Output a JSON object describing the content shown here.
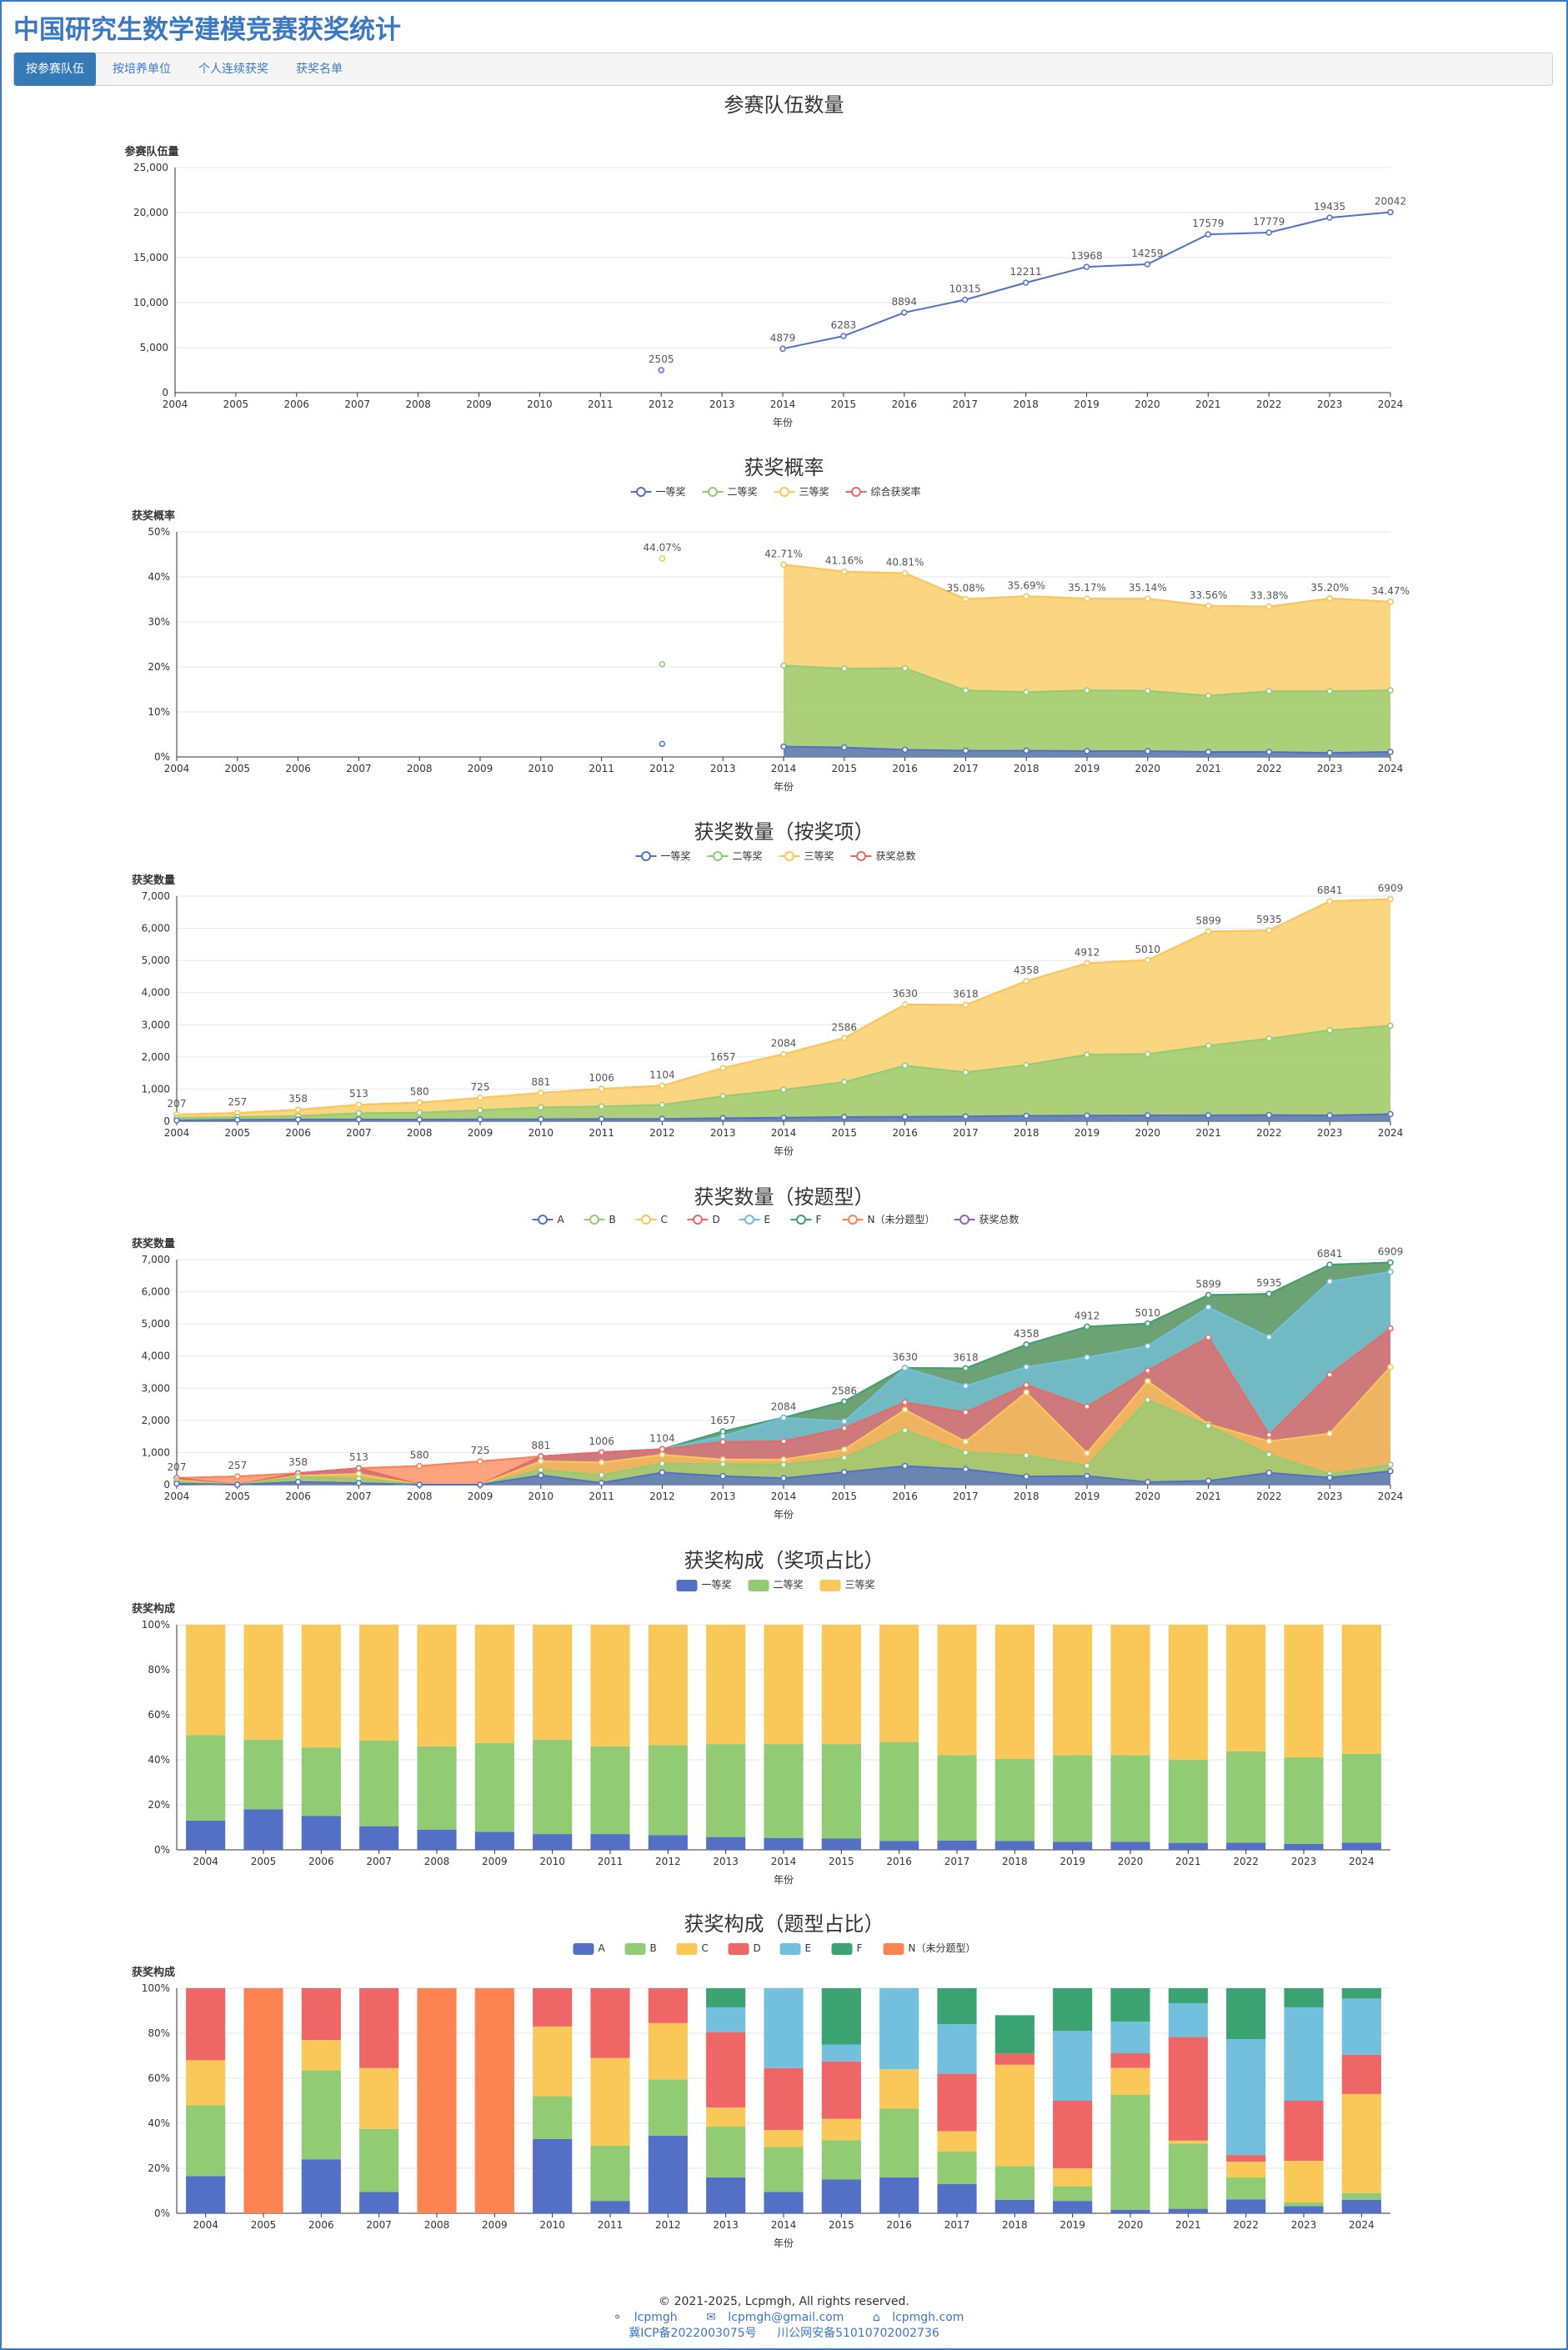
{
  "app": {
    "title": "中国研究生数学建模竞赛获奖统计"
  },
  "nav": {
    "tabs": [
      {
        "label": "按参赛队伍",
        "active": true
      },
      {
        "label": "按培养单位",
        "active": false
      },
      {
        "label": "个人连续获奖",
        "active": false
      },
      {
        "label": "获奖名单",
        "active": false
      }
    ]
  },
  "footer": {
    "copyright": "© 2021-2025, Lcpmgh, All rights reserved.",
    "github": "lcpmgh",
    "email": "lcpmgh@gmail.com",
    "site": "lcpmgh.com",
    "icp": "冀ICP备2022003075号",
    "police": "川公网安备51010702002736"
  },
  "chart_data": [
    {
      "id": "teams",
      "type": "line",
      "title": "参赛队伍数量",
      "ylabel": "参赛队伍量",
      "xlabel": "年份",
      "x": [
        "2004",
        "2005",
        "2006",
        "2007",
        "2008",
        "2009",
        "2010",
        "2011",
        "2012",
        "2013",
        "2014",
        "2015",
        "2016",
        "2017",
        "2018",
        "2019",
        "2020",
        "2021",
        "2022",
        "2023",
        "2024"
      ],
      "ylim": [
        0,
        25000
      ],
      "yticks": [
        "0",
        "5,000",
        "10,000",
        "15,000",
        "20,000",
        "25,000"
      ],
      "series": [
        {
          "name": "",
          "color": "#5470c6",
          "values": [
            null,
            null,
            null,
            null,
            null,
            null,
            null,
            null,
            2505,
            null,
            4879,
            6283,
            8894,
            10315,
            12211,
            13968,
            14259,
            17579,
            17779,
            19435,
            20042
          ]
        }
      ],
      "data_labels": [
        "",
        "",
        "",
        "",
        "",
        "",
        "",
        "",
        "2505",
        "",
        "4879",
        "6283",
        "8894",
        "10315",
        "12211",
        "13968",
        "14259",
        "17579",
        "17779",
        "19435",
        "20042"
      ]
    },
    {
      "id": "rate",
      "type": "area",
      "title": "获奖概率",
      "ylabel": "获奖概率",
      "xlabel": "年份",
      "x": [
        "2004",
        "2005",
        "2006",
        "2007",
        "2008",
        "2009",
        "2010",
        "2011",
        "2012",
        "2013",
        "2014",
        "2015",
        "2016",
        "2017",
        "2018",
        "2019",
        "2020",
        "2021",
        "2022",
        "2023",
        "2024"
      ],
      "ylim": [
        0,
        50
      ],
      "yticks": [
        "0%",
        "10%",
        "20%",
        "30%",
        "40%",
        "50%"
      ],
      "legend": [
        "一等奖",
        "二等奖",
        "三等奖",
        "综合获奖率"
      ],
      "series": [
        {
          "name": "一等奖",
          "color": "#5470c6",
          "values": [
            null,
            null,
            null,
            null,
            null,
            null,
            null,
            null,
            2.9,
            null,
            2.3,
            2.1,
            1.6,
            1.4,
            1.4,
            1.3,
            1.3,
            1.1,
            1.1,
            0.9,
            1.1
          ]
        },
        {
          "name": "二等奖",
          "color": "#91cc75",
          "values": [
            null,
            null,
            null,
            null,
            null,
            null,
            null,
            null,
            20.6,
            null,
            20.3,
            19.6,
            19.7,
            14.8,
            14.4,
            14.8,
            14.7,
            13.6,
            14.6,
            14.6,
            14.8
          ]
        },
        {
          "name": "三等奖",
          "color": "#fac858",
          "values": [
            null,
            null,
            null,
            null,
            null,
            null,
            null,
            null,
            44.07,
            null,
            42.71,
            41.16,
            40.81,
            35.08,
            35.69,
            35.17,
            35.14,
            33.56,
            33.38,
            35.2,
            34.47
          ]
        },
        {
          "name": "综合获奖率",
          "color": "#ee6666",
          "values": [
            null,
            null,
            null,
            null,
            null,
            null,
            null,
            null,
            44.07,
            null,
            42.71,
            41.16,
            40.81,
            35.08,
            35.69,
            35.17,
            35.14,
            33.56,
            33.38,
            35.2,
            34.47
          ]
        }
      ],
      "data_labels": [
        "",
        "",
        "",
        "",
        "",
        "",
        "",
        "",
        "44.07%",
        "",
        "42.71%",
        "41.16%",
        "40.81%",
        "35.08%",
        "35.69%",
        "35.17%",
        "35.14%",
        "33.56%",
        "33.38%",
        "35.20%",
        "34.47%"
      ]
    },
    {
      "id": "awards",
      "type": "area",
      "title": "获奖数量（按奖项）",
      "ylabel": "获奖数量",
      "xlabel": "年份",
      "x": [
        "2004",
        "2005",
        "2006",
        "2007",
        "2008",
        "2009",
        "2010",
        "2011",
        "2012",
        "2013",
        "2014",
        "2015",
        "2016",
        "2017",
        "2018",
        "2019",
        "2020",
        "2021",
        "2022",
        "2023",
        "2024"
      ],
      "ylim": [
        0,
        7000
      ],
      "yticks": [
        "0",
        "1,000",
        "2,000",
        "3,000",
        "4,000",
        "5,000",
        "6,000",
        "7,000"
      ],
      "legend": [
        "一等奖",
        "二等奖",
        "三等奖",
        "获奖总数"
      ],
      "series": [
        {
          "name": "一等奖",
          "color": "#5470c6",
          "values": [
            27,
            46,
            54,
            54,
            52,
            58,
            60,
            70,
            72,
            95,
            110,
            130,
            140,
            148,
            170,
            175,
            180,
            185,
            190,
            180,
            220
          ]
        },
        {
          "name": "二等奖",
          "color": "#91cc75",
          "values": [
            106,
            126,
            163,
            248,
            268,
            345,
            430,
            461,
            510,
            780,
            980,
            1220,
            1730,
            1520,
            1750,
            2070,
            2090,
            2350,
            2570,
            2830,
            2970
          ]
        },
        {
          "name": "三等奖",
          "color": "#fac858",
          "values": [
            207,
            257,
            358,
            513,
            580,
            725,
            881,
            1006,
            1104,
            1657,
            2084,
            2586,
            3630,
            3618,
            4358,
            4912,
            5010,
            5899,
            5935,
            6841,
            6909
          ]
        },
        {
          "name": "获奖总数",
          "color": "#ee6666",
          "values": [
            207,
            257,
            358,
            513,
            580,
            725,
            881,
            1006,
            1104,
            1657,
            2084,
            2586,
            3630,
            3618,
            4358,
            4912,
            5010,
            5899,
            5935,
            6841,
            6909
          ]
        }
      ],
      "data_labels": [
        "207",
        "257",
        "358",
        "513",
        "580",
        "725",
        "881",
        "1006",
        "1104",
        "1657",
        "2084",
        "2586",
        "3630",
        "3618",
        "4358",
        "4912",
        "5010",
        "5899",
        "5935",
        "6841",
        "6909"
      ]
    },
    {
      "id": "problems",
      "type": "area",
      "title": "获奖数量（按题型）",
      "ylabel": "获奖数量",
      "xlabel": "年份",
      "x": [
        "2004",
        "2005",
        "2006",
        "2007",
        "2008",
        "2009",
        "2010",
        "2011",
        "2012",
        "2013",
        "2014",
        "2015",
        "2016",
        "2017",
        "2018",
        "2019",
        "2020",
        "2021",
        "2022",
        "2023",
        "2024"
      ],
      "ylim": [
        0,
        7000
      ],
      "yticks": [
        "0",
        "1,000",
        "2,000",
        "3,000",
        "4,000",
        "5,000",
        "6,000",
        "7,000"
      ],
      "legend": [
        "A",
        "B",
        "C",
        "D",
        "E",
        "F",
        "N（未分题型）",
        "获奖总数"
      ],
      "series": [
        {
          "name": "A",
          "color": "#5470c6",
          "values": [
            34,
            0,
            85,
            50,
            0,
            0,
            290,
            55,
            380,
            265,
            200,
            390,
            580,
            480,
            255,
            270,
            80,
            120,
            370,
            220,
            420
          ]
        },
        {
          "name": "B",
          "color": "#91cc75",
          "values": [
            99,
            0,
            240,
            190,
            0,
            0,
            460,
            300,
            660,
            640,
            620,
            840,
            1690,
            1000,
            910,
            590,
            2640,
            1830,
            940,
            330,
            620
          ]
        },
        {
          "name": "C",
          "color": "#fac858",
          "values": [
            140,
            0,
            275,
            335,
            0,
            0,
            730,
            690,
            930,
            780,
            780,
            1090,
            2330,
            1340,
            2870,
            980,
            3220,
            1880,
            1350,
            1590,
            3660
          ]
        },
        {
          "name": "D",
          "color": "#ee6666",
          "values": [
            207,
            0,
            358,
            513,
            0,
            0,
            881,
            1006,
            1104,
            1330,
            1350,
            1760,
            2560,
            2250,
            3100,
            2430,
            3550,
            4580,
            1550,
            3420,
            4860
          ]
        },
        {
          "name": "E",
          "color": "#73c0de",
          "values": [
            207,
            0,
            358,
            513,
            0,
            0,
            881,
            1006,
            1104,
            1510,
            2080,
            1970,
            3630,
            3070,
            3660,
            3960,
            4310,
            5520,
            4590,
            6320,
            6620
          ]
        },
        {
          "name": "F",
          "color": "#3ba272",
          "values": [
            207,
            0,
            358,
            513,
            0,
            0,
            881,
            1006,
            1104,
            1657,
            2084,
            2586,
            3630,
            3618,
            4358,
            4912,
            5010,
            5899,
            5935,
            6841,
            6909
          ]
        },
        {
          "name": "N（未分题型）",
          "color": "#fc8452",
          "values": [
            207,
            257,
            358,
            513,
            580,
            725,
            881,
            1006,
            1104,
            1657,
            2084,
            2586,
            3630,
            3618,
            4358,
            4912,
            5010,
            5899,
            5935,
            6841,
            6909
          ]
        },
        {
          "name": "获奖总数",
          "color": "#9a60b4",
          "values": [
            207,
            257,
            358,
            513,
            580,
            725,
            881,
            1006,
            1104,
            1657,
            2084,
            2586,
            3630,
            3618,
            4358,
            4912,
            5010,
            5899,
            5935,
            6841,
            6909
          ]
        }
      ],
      "data_labels": [
        "207",
        "257",
        "358",
        "513",
        "580",
        "725",
        "881",
        "1006",
        "1104",
        "1657",
        "2084",
        "2586",
        "3630",
        "3618",
        "4358",
        "4912",
        "5010",
        "5899",
        "5935",
        "6841",
        "6909"
      ]
    },
    {
      "id": "share",
      "type": "bar",
      "stacked": true,
      "title": "获奖构成（奖项占比）",
      "ylabel": "获奖构成",
      "xlabel": "年份",
      "categories": [
        "2004",
        "2005",
        "2006",
        "2007",
        "2008",
        "2009",
        "2010",
        "2011",
        "2012",
        "2013",
        "2014",
        "2015",
        "2016",
        "2017",
        "2018",
        "2019",
        "2020",
        "2021",
        "2022",
        "2023",
        "2024"
      ],
      "ylim": [
        0,
        100
      ],
      "yticks": [
        "0%",
        "20%",
        "40%",
        "60%",
        "80%",
        "100%"
      ],
      "legend": [
        "一等奖",
        "二等奖",
        "三等奖"
      ],
      "series": [
        {
          "name": "一等奖",
          "color": "#5470c6",
          "values": [
            13,
            18,
            15,
            10.5,
            9,
            8,
            7,
            7,
            6.5,
            5.7,
            5.3,
            5.0,
            3.9,
            4.1,
            3.9,
            3.6,
            3.6,
            3.1,
            3.2,
            2.6,
            3.2
          ]
        },
        {
          "name": "二等奖",
          "color": "#91cc75",
          "values": [
            38,
            31,
            30.5,
            38,
            37,
            39.5,
            42,
            39,
            40,
            41.3,
            41.7,
            42,
            44,
            38,
            36.5,
            38.5,
            38.5,
            37,
            40.5,
            38.5,
            39.5
          ]
        },
        {
          "name": "三等奖",
          "color": "#fac858",
          "values": [
            49,
            51,
            54.5,
            51.5,
            54,
            52.5,
            51,
            54,
            53.5,
            53,
            53,
            53,
            52.1,
            57.9,
            59.6,
            57.9,
            57.9,
            59.9,
            56.3,
            58.9,
            57.3
          ]
        }
      ]
    },
    {
      "id": "pshare",
      "type": "bar",
      "stacked": true,
      "title": "获奖构成（题型占比）",
      "ylabel": "获奖构成",
      "xlabel": "年份",
      "categories": [
        "2004",
        "2005",
        "2006",
        "2007",
        "2008",
        "2009",
        "2010",
        "2011",
        "2012",
        "2013",
        "2014",
        "2015",
        "2016",
        "2017",
        "2018",
        "2019",
        "2020",
        "2021",
        "2022",
        "2023",
        "2024"
      ],
      "ylim": [
        0,
        100
      ],
      "yticks": [
        "0%",
        "20%",
        "40%",
        "60%",
        "80%",
        "100%"
      ],
      "legend": [
        "A",
        "B",
        "C",
        "D",
        "E",
        "F",
        "N（未分题型）"
      ],
      "series": [
        {
          "name": "A",
          "color": "#5470c6",
          "values": [
            16.5,
            0,
            24,
            9.5,
            0,
            0,
            33,
            5.5,
            34.5,
            16,
            9.5,
            15,
            16,
            13,
            6,
            5.5,
            1.6,
            2,
            6.2,
            3.2,
            6
          ]
        },
        {
          "name": "B",
          "color": "#91cc75",
          "values": [
            31.5,
            0,
            39.5,
            28,
            0,
            0,
            19,
            24.5,
            25,
            22.5,
            20,
            17.5,
            30.5,
            14.5,
            15,
            6.5,
            51,
            29,
            9.7,
            1.6,
            3
          ]
        },
        {
          "name": "C",
          "color": "#fac858",
          "values": [
            20,
            0,
            13.5,
            27,
            0,
            0,
            31,
            39,
            25,
            8.5,
            7.5,
            9.5,
            17.5,
            9,
            45,
            8,
            12,
            1.3,
            7,
            18.5,
            44
          ]
        },
        {
          "name": "D",
          "color": "#ee6666",
          "values": [
            32,
            0,
            23,
            35.5,
            0,
            0,
            17,
            31,
            15.5,
            33.5,
            27.5,
            25.5,
            0,
            25.5,
            5,
            30,
            6.5,
            46,
            3,
            26.7,
            17.4
          ]
        },
        {
          "name": "E",
          "color": "#73c0de",
          "values": [
            0,
            0,
            0,
            0,
            0,
            0,
            0,
            0,
            0,
            11,
            35.5,
            7.5,
            36,
            22,
            0,
            31,
            14,
            15,
            51.5,
            41.5,
            25
          ]
        },
        {
          "name": "F",
          "color": "#3ba272",
          "values": [
            0,
            0,
            0,
            0,
            0,
            0,
            0,
            0,
            0,
            8.5,
            0,
            25,
            0,
            16,
            17,
            19,
            14.9,
            6.7,
            22.6,
            8.5,
            4.6
          ]
        },
        {
          "name": "N（未分题型）",
          "color": "#fc8452",
          "values": [
            0,
            100,
            0,
            0,
            100,
            100,
            0,
            0,
            0,
            0,
            0,
            0,
            0,
            0,
            0,
            0,
            0,
            0,
            0,
            0,
            0
          ]
        }
      ]
    }
  ]
}
